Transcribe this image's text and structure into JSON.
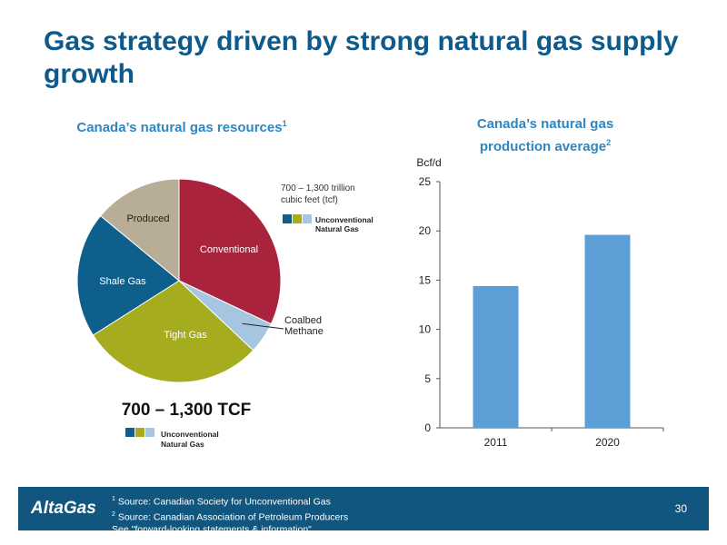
{
  "slide": {
    "title": "Gas strategy driven by strong natural gas supply growth",
    "page_number": "30"
  },
  "footer": {
    "logo": "AltaGas",
    "sources": [
      {
        "sup": "1",
        "text": " Source: Canadian Society for Unconventional Gas"
      },
      {
        "sup": "2",
        "text": " Source: Canadian Association of Petroleum Producers"
      },
      {
        "sup": "",
        "text": "See \"forward-looking statements & information\""
      }
    ]
  },
  "pie": {
    "subtitle": "Canada’s natural gas resources",
    "subtitle_sup": "1",
    "callout_text": [
      "700 – 1,300 trillion",
      "cubic feet (tcf)"
    ],
    "legend_label": [
      "Unconventional",
      "Natural Gas"
    ],
    "big_total": "700 – 1,300 TCF",
    "legend_label_bottom": [
      "Unconventional",
      "Natural Gas"
    ]
  },
  "bar": {
    "subtitle_lines": [
      "Canada’s natural gas",
      "production average"
    ],
    "subtitle_sup": "2"
  },
  "chart_data": [
    {
      "type": "pie",
      "title": "Canada’s natural gas resources",
      "slices": [
        {
          "label": "Conventional",
          "value": 32,
          "color": "#a8233b"
        },
        {
          "label": "Coalbed Methane",
          "value": 5,
          "color": "#a6c5e0"
        },
        {
          "label": "Tight Gas",
          "value": 29,
          "color": "#a5ac1e"
        },
        {
          "label": "Shale Gas",
          "value": 20,
          "color": "#0f5f8c"
        },
        {
          "label": "Produced",
          "value": 14,
          "color": "#b8ad97"
        }
      ],
      "legend": [
        "Unconventional Natural Gas"
      ],
      "legend_colors": [
        "#0f5f8c",
        "#a5ac1e",
        "#a6c5e0"
      ],
      "annotation": "700 – 1,300 TCF"
    },
    {
      "type": "bar",
      "title": "Canada’s natural gas production average",
      "unit": "Bcf/d",
      "categories": [
        "2011",
        "2020"
      ],
      "values": [
        14.4,
        19.6
      ],
      "ylim": [
        0,
        25
      ],
      "yticks": [
        0,
        5,
        10,
        15,
        20,
        25
      ],
      "bar_color": "#5b9fd6",
      "grid": false
    }
  ]
}
